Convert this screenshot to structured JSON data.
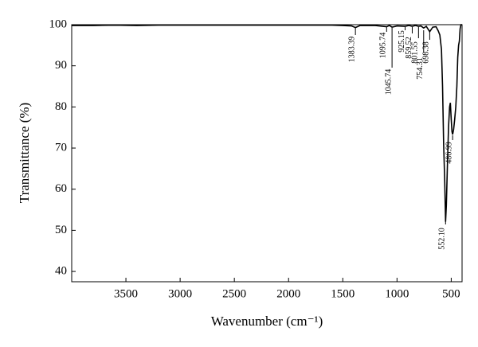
{
  "chart_data": {
    "type": "line",
    "y_label": "Transmittance (%)",
    "x_label": "Wavenumber (cm⁻¹)",
    "x": [
      4000,
      3800,
      3600,
      3400,
      3200,
      3000,
      2800,
      2600,
      2400,
      2200,
      2000,
      1800,
      1600,
      1500,
      1420,
      1383.39,
      1340,
      1200,
      1095.74,
      1070,
      1045.74,
      1000,
      925.15,
      890,
      859.52,
      830,
      801.55,
      780,
      754.31,
      730,
      698.38,
      670,
      640,
      620,
      605,
      590,
      580,
      570,
      560,
      552.1,
      545,
      535,
      525,
      515,
      508,
      500,
      493,
      486.99,
      478,
      468,
      458,
      448,
      440,
      432,
      425,
      418,
      410,
      400
    ],
    "values": [
      99.8,
      99.8,
      99.9,
      99.8,
      99.9,
      99.9,
      99.9,
      99.9,
      99.9,
      99.9,
      99.9,
      99.9,
      99.9,
      99.8,
      99.7,
      99.3,
      99.8,
      99.8,
      99.5,
      99.8,
      99.4,
      99.7,
      99.6,
      99.8,
      99.6,
      99.8,
      99.6,
      99.7,
      99.2,
      99.6,
      98.3,
      99.4,
      99.5,
      98.5,
      97.5,
      94,
      85,
      71,
      62,
      52.1,
      56,
      66,
      75,
      80,
      81,
      77,
      74,
      73.3,
      74.5,
      77,
      80,
      85,
      92,
      95,
      96,
      99,
      100,
      100
    ],
    "color": "#000000",
    "xlim": [
      4000,
      400
    ],
    "xticks": [
      3500,
      3000,
      2500,
      2000,
      1500,
      1000,
      500
    ],
    "ylim": [
      37.5,
      100
    ],
    "yticks": [
      40,
      50,
      60,
      70,
      80,
      90,
      100
    ],
    "grid": false,
    "annotations": [
      {
        "x": 1383.39,
        "label": "1383.39"
      },
      {
        "x": 1095.74,
        "label": "1095.74"
      },
      {
        "x": 1045.74,
        "label": "1045.74"
      },
      {
        "x": 925.15,
        "label": "925.15"
      },
      {
        "x": 859.52,
        "label": "859.52"
      },
      {
        "x": 801.55,
        "label": "801.55"
      },
      {
        "x": 754.31,
        "label": "754.31"
      },
      {
        "x": 698.38,
        "label": "698.38"
      },
      {
        "x": 552.1,
        "label": "552.10"
      },
      {
        "x": 486.99,
        "label": "486.99"
      }
    ]
  }
}
